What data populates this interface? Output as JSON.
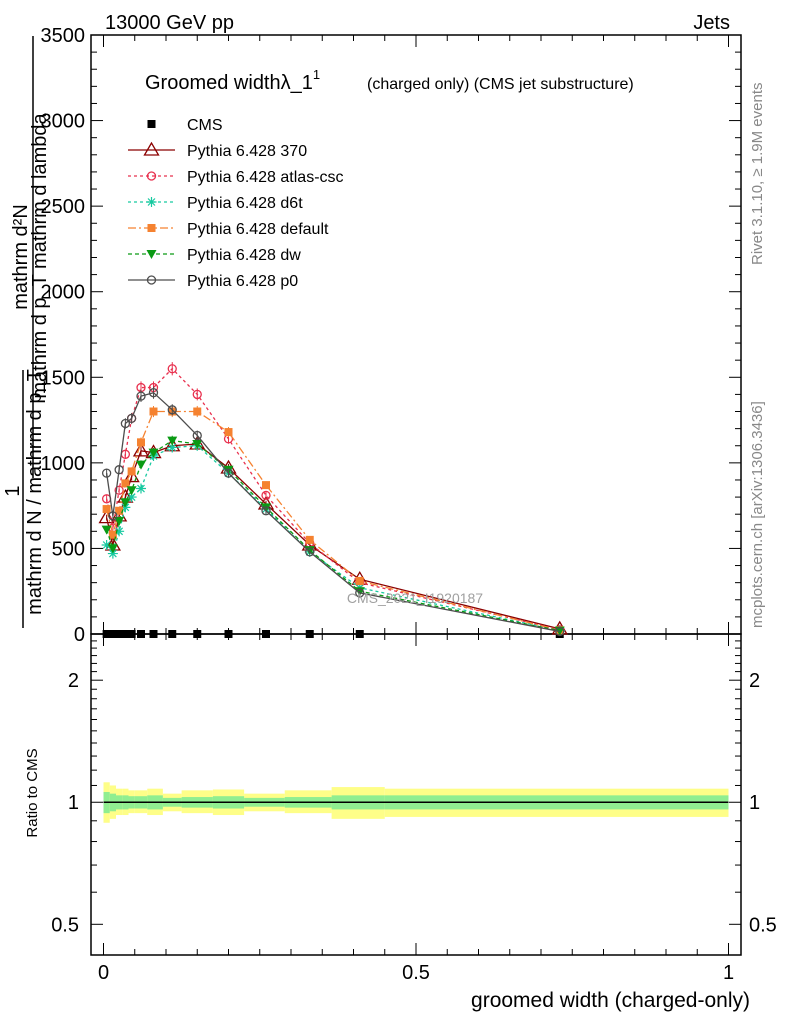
{
  "header": {
    "left": "13000 GeV pp",
    "right": "Jets"
  },
  "side": {
    "rivet": "Rivet 3.1.10, ≥ 1.9M events",
    "mcplots": "mcplots.cern.ch [arXiv:1306.3436]"
  },
  "watermark": "CMS_2021_I1920187",
  "title": {
    "main": "Groomed widthλ_1",
    "sup": "1",
    "sub": "(charged only) (CMS jet substructure)"
  },
  "ylabel_top": {
    "num": "mathrm d²N",
    "den": "mathrm d p_T mathrm d lambda",
    "coef_num": "1",
    "coef_den": "mathrm d N / mathrm d p_T"
  },
  "ylabel_bottom": "Ratio to CMS",
  "xlabel": "groomed width (charged-only)",
  "chart_data": [
    {
      "type": "line",
      "panel": "main",
      "x_range": [
        -0.02,
        1.02
      ],
      "ylim": [
        0,
        3500
      ],
      "yticks": [
        0,
        500,
        1000,
        1500,
        2000,
        2500,
        3000,
        3500
      ],
      "ytick_labels": [
        "0",
        "500",
        "1000",
        "1500",
        "2000",
        "2500",
        "3000",
        "3500"
      ],
      "legend_position": "top-left",
      "series": [
        {
          "name": "CMS",
          "color": "#000000",
          "marker": "square",
          "dash": "none",
          "x": [
            0.005,
            0.015,
            0.025,
            0.035,
            0.045,
            0.06,
            0.08,
            0.11,
            0.15,
            0.2,
            0.26,
            0.33,
            0.41,
            0.73
          ],
          "y": [
            0,
            0,
            0,
            0,
            0,
            0,
            0,
            0,
            0,
            0,
            0,
            0,
            0,
            0
          ]
        },
        {
          "name": "Pythia 6.428 370",
          "color": "#8b0000",
          "marker": "triangle-open",
          "dash": "none",
          "x": [
            0.005,
            0.015,
            0.025,
            0.035,
            0.045,
            0.06,
            0.08,
            0.11,
            0.15,
            0.2,
            0.26,
            0.33,
            0.41,
            0.73
          ],
          "y": [
            680,
            520,
            690,
            800,
            920,
            1070,
            1060,
            1100,
            1110,
            970,
            760,
            520,
            320,
            30
          ]
        },
        {
          "name": "Pythia 6.428 atlas-csc",
          "color": "#e8304e",
          "marker": "circle-open",
          "dash": "3,3",
          "x": [
            0.005,
            0.015,
            0.025,
            0.035,
            0.045,
            0.06,
            0.08,
            0.11,
            0.15,
            0.2,
            0.26,
            0.33,
            0.41,
            0.73
          ],
          "y": [
            790,
            620,
            840,
            1050,
            1260,
            1440,
            1440,
            1550,
            1400,
            1140,
            810,
            530,
            300,
            25
          ]
        },
        {
          "name": "Pythia 6.428 d6t",
          "color": "#17c9a0",
          "marker": "star",
          "dash": "3,3",
          "x": [
            0.005,
            0.015,
            0.025,
            0.035,
            0.045,
            0.06,
            0.08,
            0.11,
            0.15,
            0.2,
            0.26,
            0.33,
            0.41,
            0.73
          ],
          "y": [
            520,
            470,
            600,
            740,
            800,
            850,
            1040,
            1090,
            1100,
            940,
            730,
            480,
            270,
            20
          ]
        },
        {
          "name": "Pythia 6.428 default",
          "color": "#f58230",
          "marker": "square",
          "dash": "8,3,2,3",
          "x": [
            0.005,
            0.015,
            0.025,
            0.035,
            0.045,
            0.06,
            0.08,
            0.11,
            0.15,
            0.2,
            0.26,
            0.33,
            0.41,
            0.73
          ],
          "y": [
            730,
            580,
            720,
            880,
            950,
            1120,
            1300,
            1300,
            1300,
            1180,
            870,
            550,
            310,
            22
          ]
        },
        {
          "name": "Pythia 6.428 dw",
          "color": "#0a9a14",
          "marker": "triangle-down",
          "dash": "4,3",
          "x": [
            0.005,
            0.015,
            0.025,
            0.035,
            0.045,
            0.06,
            0.08,
            0.11,
            0.15,
            0.2,
            0.26,
            0.33,
            0.41,
            0.73
          ],
          "y": [
            610,
            500,
            660,
            770,
            840,
            990,
            1060,
            1130,
            1110,
            960,
            740,
            490,
            250,
            20
          ]
        },
        {
          "name": "Pythia 6.428 p0",
          "color": "#4d4d4d",
          "marker": "circle-open",
          "dash": "none",
          "x": [
            0.005,
            0.015,
            0.025,
            0.035,
            0.045,
            0.06,
            0.08,
            0.11,
            0.15,
            0.2,
            0.26,
            0.33,
            0.41,
            0.73
          ],
          "y": [
            940,
            690,
            960,
            1230,
            1260,
            1390,
            1410,
            1310,
            1160,
            940,
            720,
            480,
            240,
            15
          ]
        }
      ]
    },
    {
      "type": "area",
      "panel": "ratio",
      "x_range": [
        -0.02,
        1.02
      ],
      "ylim": [
        0.42,
        2.6
      ],
      "log_scale": true,
      "yticks": [
        0.5,
        1,
        2
      ],
      "ytick_labels": [
        "0.5",
        "1",
        "2"
      ],
      "xticks": [
        0,
        0.5,
        1
      ],
      "xtick_labels": [
        "0",
        "0.5",
        "1"
      ],
      "bin_edges": [
        0,
        0.01,
        0.02,
        0.03,
        0.04,
        0.05,
        0.07,
        0.095,
        0.125,
        0.175,
        0.225,
        0.29,
        0.365,
        0.45,
        1.0
      ],
      "band_inner_low": [
        0.94,
        0.95,
        0.96,
        0.96,
        0.965,
        0.965,
        0.96,
        0.975,
        0.97,
        0.965,
        0.975,
        0.97,
        0.96,
        0.96
      ],
      "band_inner_high": [
        1.06,
        1.05,
        1.04,
        1.04,
        1.035,
        1.035,
        1.04,
        1.025,
        1.03,
        1.035,
        1.025,
        1.03,
        1.04,
        1.04
      ],
      "band_outer_low": [
        0.89,
        0.91,
        0.93,
        0.93,
        0.94,
        0.94,
        0.93,
        0.95,
        0.94,
        0.93,
        0.95,
        0.94,
        0.91,
        0.92
      ],
      "band_outer_high": [
        1.12,
        1.1,
        1.08,
        1.08,
        1.07,
        1.07,
        1.08,
        1.05,
        1.07,
        1.075,
        1.05,
        1.07,
        1.09,
        1.08
      ],
      "inner_color": "#90ee90",
      "outer_color": "#fefe88"
    }
  ]
}
